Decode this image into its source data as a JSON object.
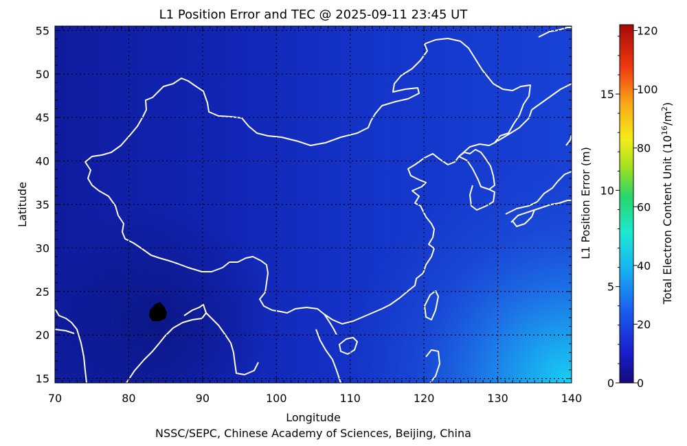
{
  "title": "L1 Position Error and TEC @ 2025-09-11 23:45 UT",
  "credit": "NSSC/SEPC, Chinese Academy of Sciences, Beijing, China",
  "axes": {
    "xlabel": "Longitude",
    "ylabel": "Latitude",
    "x_ticks": [
      "70",
      "80",
      "90",
      "100",
      "110",
      "120",
      "130",
      "140"
    ],
    "y_ticks": [
      "15",
      "20",
      "25",
      "30",
      "35",
      "40",
      "45",
      "50",
      "55"
    ]
  },
  "colorbar": {
    "left_label": "L1 Position Error (m)",
    "right_label_main": "Total Electron Content Unit (10",
    "right_label_sup1": "16",
    "right_label_mid": "/m",
    "right_label_sup2": "2",
    "right_label_end": ")",
    "left_ticks": [
      "0",
      "5",
      "10",
      "15"
    ],
    "right_ticks": [
      "0",
      "20",
      "40",
      "60",
      "80",
      "100",
      "120"
    ]
  },
  "chart_data": {
    "type": "heatmap",
    "title": "L1 Position Error and TEC @ 2025-09-11 23:45 UT",
    "xlabel": "Longitude",
    "ylabel": "Latitude",
    "xlim": [
      70,
      140
    ],
    "ylim": [
      14.5,
      55.5
    ],
    "tec_range": [
      0,
      122
    ],
    "position_error_range": [
      0,
      18.6
    ],
    "grid": true,
    "colormap": "rainbow (dark blue at 0 to dark red at max)",
    "field_description_values": {
      "background_tec": 12,
      "east_max_tec": 32,
      "low_spot_tec": 0,
      "low_spot_center": [
        84,
        23
      ]
    },
    "colors": {
      "map_lines": "#ffffff",
      "field_low": "#0e1a9c",
      "field_mid": "#1a3ad8",
      "field_high": "#16c4f0",
      "spot": "#000000"
    }
  }
}
